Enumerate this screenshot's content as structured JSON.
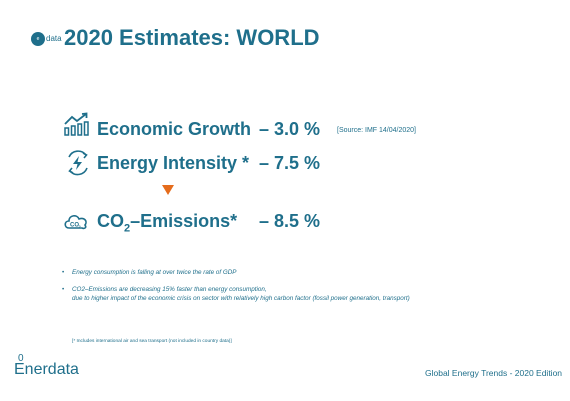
{
  "header": {
    "logo_text": "data",
    "title": "2020 Estimates: WORLD"
  },
  "metrics": [
    {
      "icon": "growth-chart-icon",
      "label": "Economic Growth",
      "value": "– 3.0 %",
      "note": "[Source: IMF 14/04/2020]"
    },
    {
      "icon": "lightning-icon",
      "label": "Energy Intensity  *",
      "value": "– 7.5 %"
    },
    {
      "icon": "co2-cloud-icon",
      "label_prefix": "CO",
      "label_sub": "2",
      "label_suffix": "–Emissions*",
      "value": "– 8.5 %"
    }
  ],
  "bullets": [
    "Energy consumption is falling at over twice the rate of GDP",
    "CO2–Emissions are decreasing 15% faster than energy consumption,",
    "due to higher impact of the economic crisis on sector with relatively high carbon factor (fossil power generation, transport)"
  ],
  "footnote": "[* Includes international air and sea transport (not included in country data)]",
  "footer": {
    "logo_zero": "0",
    "logo_word": "Enerdata",
    "edition": "Global Energy Trends - 2020 Edition"
  },
  "colors": {
    "brand": "#1f6f8b",
    "arrow": "#e56c1c"
  }
}
